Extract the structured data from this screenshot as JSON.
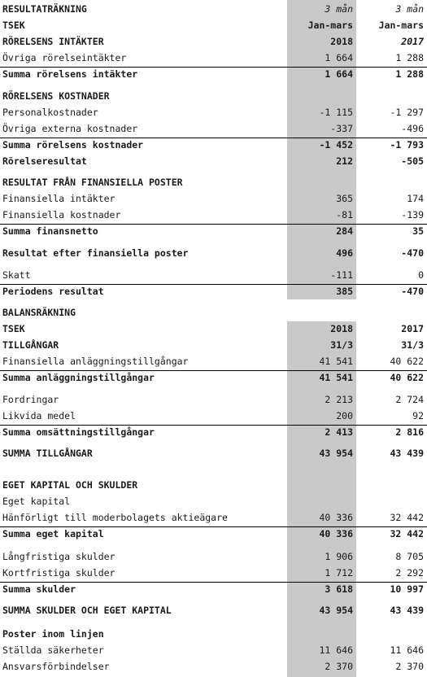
{
  "rows": [
    {
      "label": "RESULTATRÄKNING",
      "c1": "3 mån",
      "c2": "3 mån",
      "bold": true,
      "italic_values": true
    },
    {
      "label": "TSEK",
      "c1": "Jan-mars",
      "c2": "Jan-mars",
      "bold": true
    },
    {
      "label": "RÖRELSENS INTÄKTER",
      "c1": "2018",
      "c2": "2017",
      "bold": true,
      "italic_c2": true
    },
    {
      "label": "Övriga rörelseintäkter",
      "c1": "1 664",
      "c2": "1 288"
    },
    {
      "label": "Summa rörelsens intäkter",
      "c1": "1 664",
      "c2": "1 288",
      "bold": true
    },
    {
      "label": "RÖRELSENS KOSTNADER",
      "c1": "",
      "c2": "",
      "bold": true
    },
    {
      "label": "Personalkostnader",
      "c1": "-1 115",
      "c2": "-1 297"
    },
    {
      "label": "Övriga externa kostnader",
      "c1": "-337",
      "c2": "-496"
    },
    {
      "label": "Summa rörelsens kostnader",
      "c1": "-1 452",
      "c2": "-1 793",
      "bold": true
    },
    {
      "label": "Rörelseresultat",
      "c1": "212",
      "c2": "-505",
      "bold": true
    },
    {
      "label": "RESULTAT FRÅN FINANSIELLA POSTER",
      "c1": "",
      "c2": "",
      "bold": true
    },
    {
      "label": "Finansiella intäkter",
      "c1": "365",
      "c2": "174"
    },
    {
      "label": "Finansiella kostnader",
      "c1": "-81",
      "c2": "-139"
    },
    {
      "label": "Summa finansnetto",
      "c1": "284",
      "c2": "35",
      "bold": true
    },
    {
      "label": "Resultat efter finansiella poster",
      "c1": "496",
      "c2": "-470",
      "bold": true
    },
    {
      "label": "Skatt",
      "c1": "-111",
      "c2": "0"
    },
    {
      "label": "Periodens resultat",
      "c1": "385",
      "c2": "-470",
      "bold": true
    },
    {
      "label": "BALANSRÄKNING",
      "c1": "",
      "c2": "",
      "bold": true
    },
    {
      "label": "TSEK",
      "c1": "2018",
      "c2": "2017",
      "bold": true
    },
    {
      "label": "TILLGÅNGAR",
      "c1": "31/3",
      "c2": "31/3",
      "bold": true
    },
    {
      "label": "Finansiella anläggningstillgångar",
      "c1": "41 541",
      "c2": "40 622"
    },
    {
      "label": "Summa anläggningstillgångar",
      "c1": "41 541",
      "c2": "40 622",
      "bold": true
    },
    {
      "label": "Fordringar",
      "c1": "2 213",
      "c2": "2 724"
    },
    {
      "label": "Likvida medel",
      "c1": "200",
      "c2": "92"
    },
    {
      "label": "Summa omsättningstillgångar",
      "c1": "2 413",
      "c2": "2 816",
      "bold": true
    },
    {
      "label": "SUMMA TILLGÅNGAR",
      "c1": "43 954",
      "c2": "43 439",
      "bold": true
    },
    {
      "label": "EGET KAPITAL OCH SKULDER",
      "c1": "",
      "c2": "",
      "bold": true
    },
    {
      "label": "Eget kapital",
      "c1": "",
      "c2": ""
    },
    {
      "label": "Hänförligt till moderbolagets aktieägare",
      "c1": "40 336",
      "c2": "32 442"
    },
    {
      "label": "Summa eget kapital",
      "c1": "40 336",
      "c2": "32 442",
      "bold": true
    },
    {
      "label": "Långfristiga skulder",
      "c1": "1 906",
      "c2": "8 705"
    },
    {
      "label": "Kortfristiga skulder",
      "c1": "1 712",
      "c2": "2 292"
    },
    {
      "label": "Summa skulder",
      "c1": "3 618",
      "c2": "10 997",
      "bold": true
    },
    {
      "label": "SUMMA SKULDER OCH EGET KAPITAL",
      "c1": "43 954",
      "c2": "43 439",
      "bold": true
    },
    {
      "label": "Poster inom linjen",
      "c1": "",
      "c2": "",
      "bold": true
    },
    {
      "label": "Ställda säkerheter",
      "c1": "11 646",
      "c2": "11 646"
    },
    {
      "label": "Ansvarsförbindelser",
      "c1": "2 370",
      "c2": "2 370"
    }
  ]
}
